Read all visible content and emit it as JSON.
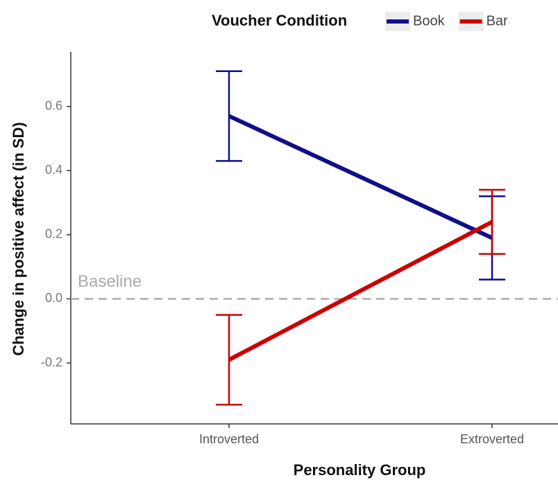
{
  "chart_data": {
    "type": "line",
    "legend_title": "Voucher Condition",
    "x_label": "Personality Group",
    "y_label": "Change in positive affect (in SD)",
    "categories": [
      "Introverted",
      "Extroverted"
    ],
    "series": [
      {
        "name": "Book",
        "color": "#0f0f8a",
        "values": [
          0.57,
          0.19
        ],
        "errors": [
          0.14,
          0.13
        ]
      },
      {
        "name": "Bar",
        "color": "#cc0000",
        "values": [
          -0.19,
          0.24
        ],
        "errors": [
          0.14,
          0.1
        ]
      }
    ],
    "ylim": [
      -0.39,
      0.77
    ],
    "yticks": [
      -0.2,
      {
        "value": 0,
        "label": "0.0"
      },
      0.2,
      0.4,
      0.6
    ],
    "baseline": {
      "label": "Baseline",
      "value": 0,
      "color": "#aaaaaa"
    },
    "grid": false,
    "legend": "top"
  }
}
